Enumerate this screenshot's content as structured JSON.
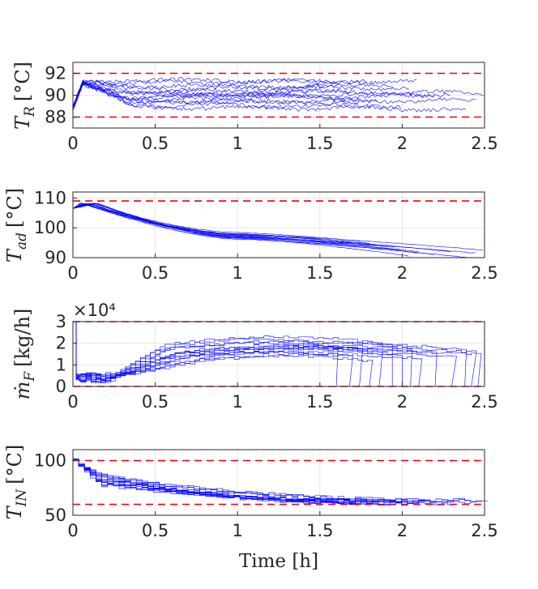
{
  "chart_data": [
    {
      "type": "line",
      "ylabel": "T_R [°C]",
      "ylabel_parts": {
        "symbol": "T",
        "sub": "R",
        "unit": "[°C]"
      },
      "xlabel": "",
      "xlim": [
        0,
        2.5
      ],
      "ylim": [
        87,
        93
      ],
      "xticks": [
        0,
        0.5,
        1,
        1.5,
        2,
        2.5
      ],
      "xtick_labels": [
        "0",
        "0.5",
        "1",
        "1.5",
        "2",
        "2.5"
      ],
      "yticks": [
        88,
        90,
        92
      ],
      "ytick_labels": [
        "88",
        "90",
        "92"
      ],
      "bounds": [
        88,
        92
      ],
      "grid": true,
      "series_color": "#0000ff",
      "bound_color": "#e8000b",
      "trajectories": {
        "count": 14,
        "start": 88.8,
        "peak_range": [
          89.9,
          91.6
        ],
        "end_times": [
          1.62,
          1.7,
          1.75,
          1.8,
          1.85,
          1.95,
          2.0,
          2.05,
          2.1,
          2.2,
          2.3,
          2.4,
          2.45,
          2.5
        ],
        "final_levels": [
          91.1,
          90.4,
          89.6,
          91.3,
          89.3,
          90.9,
          89.0,
          90.6,
          91.2,
          89.9,
          90.1,
          88.7,
          89.5,
          90.2
        ],
        "mid_levels": [
          89.3,
          89.8,
          90.3,
          91.1,
          89.5,
          90.6,
          89.1,
          90.9,
          91.4,
          89.7,
          90.0,
          88.9,
          89.4,
          90.4
        ]
      }
    },
    {
      "type": "line",
      "ylabel": "T_ad [°C]",
      "ylabel_parts": {
        "symbol": "T",
        "sub": "ad",
        "unit": "[°C]"
      },
      "xlabel": "",
      "xlim": [
        0,
        2.5
      ],
      "ylim": [
        90,
        112
      ],
      "xticks": [
        0,
        0.5,
        1,
        1.5,
        2,
        2.5
      ],
      "xtick_labels": [
        "0",
        "0.5",
        "1",
        "1.5",
        "2",
        "2.5"
      ],
      "yticks": [
        90,
        100,
        110
      ],
      "ytick_labels": [
        "90",
        "100",
        "110"
      ],
      "bounds": [
        109
      ],
      "grid": true,
      "series_color": "#0000ff",
      "bound_color": "#e8000b",
      "trajectories": {
        "count": 14,
        "start": 106.5,
        "peak": 108.3,
        "end_times": [
          1.62,
          1.7,
          1.75,
          1.8,
          1.85,
          1.95,
          2.0,
          2.05,
          2.1,
          2.2,
          2.3,
          2.4,
          2.45,
          2.5
        ],
        "final_levels": [
          94.5,
          95.0,
          95.5,
          94.8,
          94.0,
          93.5,
          92.5,
          90.5,
          92.0,
          91.0,
          92.0,
          90.0,
          91.5,
          92.5
        ],
        "mid_levels": [
          97.5,
          98.0,
          98.4,
          97.9,
          97.2,
          97.0,
          96.8,
          96.5,
          97.3,
          96.6,
          97.6,
          96.2,
          96.9,
          97.8
        ]
      }
    },
    {
      "type": "line",
      "ylabel": "ṁ_F [kg/h]",
      "ylabel_parts": {
        "symbol": "ṁ",
        "sub": "F",
        "unit": "[kg/h]"
      },
      "xlabel": "",
      "xlim": [
        0,
        2.5
      ],
      "ylim": [
        0,
        3
      ],
      "exponent_label": "×10⁴",
      "xticks": [
        0,
        0.5,
        1,
        1.5,
        2,
        2.5
      ],
      "xtick_labels": [
        "0",
        "0.5",
        "1",
        "1.5",
        "2",
        "2.5"
      ],
      "yticks": [
        0,
        1,
        2,
        3
      ],
      "ytick_labels": [
        "0",
        "1",
        "2",
        "3"
      ],
      "bounds": [
        0,
        3
      ],
      "grid": true,
      "series_color": "#0000ff",
      "bound_color": "#e8000b",
      "trajectories": {
        "count": 14,
        "drop_times": [
          1.6,
          1.68,
          1.74,
          1.8,
          1.86,
          1.94,
          2.0,
          2.05,
          2.1,
          2.2,
          2.3,
          2.38,
          2.42,
          2.46
        ],
        "plateau_levels": [
          2.2,
          1.6,
          2.0,
          1.4,
          1.9,
          2.3,
          1.7,
          2.1,
          1.5,
          1.8,
          1.6,
          2.0,
          1.75,
          1.85
        ],
        "ramp_end": [
          0.6,
          0.7,
          0.5,
          0.8,
          0.65,
          0.55,
          0.9,
          0.6,
          0.75,
          0.7,
          0.5,
          0.85,
          0.6,
          0.65
        ]
      }
    },
    {
      "type": "line",
      "ylabel": "T_IN [°C]",
      "ylabel_parts": {
        "symbol": "T",
        "sub": "IN",
        "unit": "[°C]"
      },
      "xlabel": "Time [h]",
      "xlim": [
        0,
        2.5
      ],
      "ylim": [
        50,
        110
      ],
      "xticks": [
        0,
        0.5,
        1,
        1.5,
        2,
        2.5
      ],
      "xtick_labels": [
        "0",
        "0.5",
        "1",
        "1.5",
        "2",
        "2.5"
      ],
      "yticks": [
        50,
        100
      ],
      "ytick_labels": [
        "50",
        "100"
      ],
      "bounds": [
        60,
        100
      ],
      "grid": true,
      "series_color": "#0000ff",
      "bound_color": "#e8000b",
      "trajectories": {
        "count": 14,
        "start": 100,
        "end_times": [
          1.62,
          1.7,
          1.75,
          1.8,
          1.85,
          1.95,
          2.0,
          2.05,
          2.1,
          2.2,
          2.3,
          2.4,
          2.45,
          2.5
        ],
        "final_levels": [
          63,
          62,
          64,
          61,
          62,
          63,
          61,
          60.5,
          62,
          63,
          61,
          64,
          62,
          63
        ],
        "early_levels": [
          88,
          84,
          80,
          86,
          82,
          78,
          85,
          83,
          79,
          87,
          81,
          84,
          80,
          86
        ]
      }
    }
  ]
}
